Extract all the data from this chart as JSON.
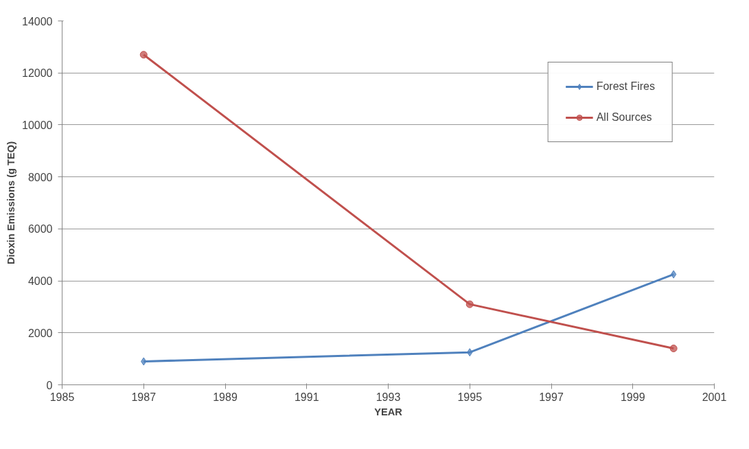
{
  "chart_data": {
    "type": "line",
    "xlabel": "YEAR",
    "ylabel": "Dioxin Emissions (g TEQ)",
    "x": [
      1987,
      1995,
      2000
    ],
    "series": [
      {
        "name": "Forest Fires",
        "color": "#4f81bd",
        "values": [
          900,
          1250,
          4250
        ],
        "marker": "diamond"
      },
      {
        "name": "All Sources",
        "color": "#c0504d",
        "values": [
          12700,
          3100,
          1400
        ],
        "marker": "circle"
      }
    ],
    "xlim": [
      1985,
      2001
    ],
    "xticks": [
      1985,
      1987,
      1989,
      1991,
      1993,
      1995,
      1997,
      1999,
      2001
    ],
    "ylim": [
      0,
      14000
    ],
    "yticks": [
      0,
      2000,
      4000,
      6000,
      8000,
      10000,
      12000,
      14000
    ],
    "grid": "y",
    "legend": "top right",
    "line_style": "solid"
  }
}
